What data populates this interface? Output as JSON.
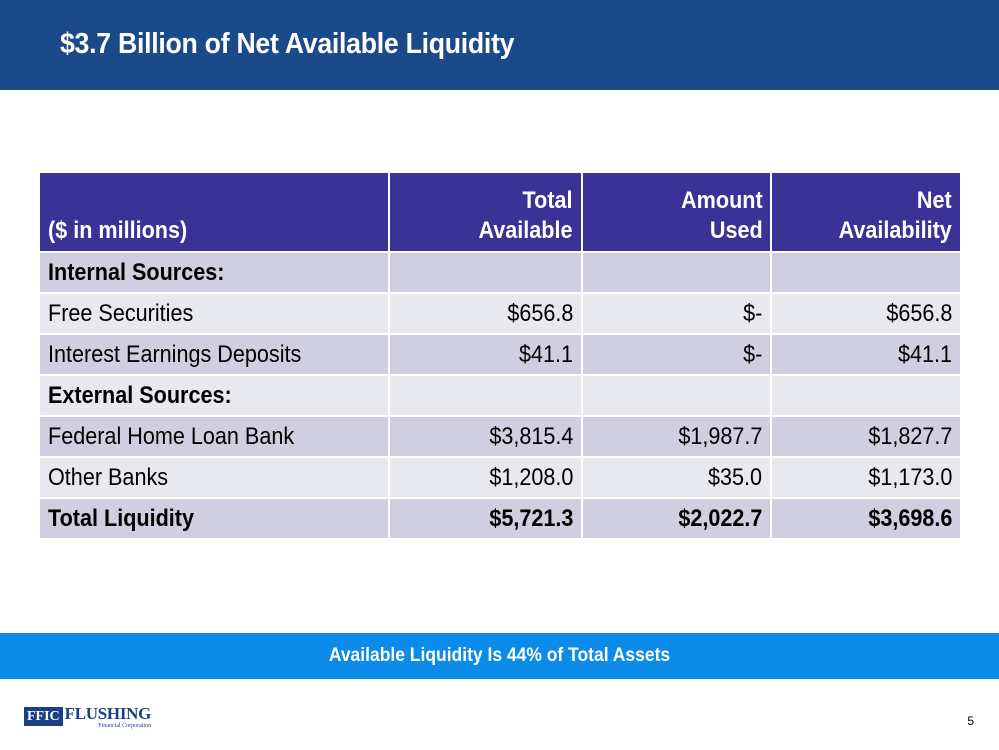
{
  "header": {
    "title": "$3.7 Billion of Net Available Liquidity"
  },
  "table": {
    "columns": {
      "label": "($ in millions)",
      "total_available": [
        "Total",
        "Available"
      ],
      "amount_used": [
        "Amount",
        "Used"
      ],
      "net_availability": [
        "Net",
        "Availability"
      ]
    },
    "rows": [
      {
        "label": "Internal Sources:",
        "total_available": "",
        "amount_used": "",
        "net_availability": ""
      },
      {
        "label": "Free Securities",
        "total_available": "$656.8",
        "amount_used": "$-",
        "net_availability": "$656.8"
      },
      {
        "label": "Interest Earnings Deposits",
        "total_available": "$41.1",
        "amount_used": "$-",
        "net_availability": "$41.1"
      },
      {
        "label": "External Sources:",
        "total_available": "",
        "amount_used": "",
        "net_availability": ""
      },
      {
        "label": "Federal Home Loan Bank",
        "total_available": "$3,815.4",
        "amount_used": "$1,987.7",
        "net_availability": "$1,827.7"
      },
      {
        "label": "Other Banks",
        "total_available": "$1,208.0",
        "amount_used": "$35.0",
        "net_availability": "$1,173.0"
      },
      {
        "label": "Total Liquidity",
        "total_available": "$5,721.3",
        "amount_used": "$2,022.7",
        "net_availability": "$3,698.6"
      }
    ]
  },
  "banner": {
    "text": "Available Liquidity Is 44% of Total Assets"
  },
  "footer": {
    "logo_mark": "FFIC",
    "logo_name": "FLUSHING",
    "logo_sub": "Financial Corporation",
    "page_number": "5"
  },
  "colors": {
    "header_bg": "#1b4a8a",
    "table_header_bg": "#3a3296",
    "row_dark": "#d0cfe2",
    "row_light": "#e8e8ef",
    "banner_bg": "#0c8be8"
  }
}
